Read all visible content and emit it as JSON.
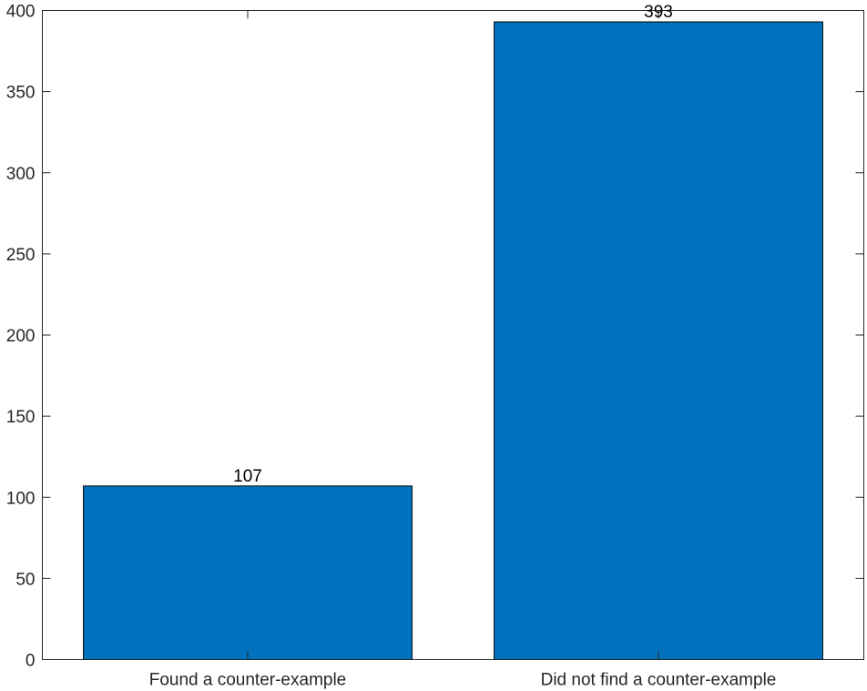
{
  "chart_data": {
    "type": "bar",
    "title": "",
    "xlabel": "",
    "ylabel": "",
    "categories": [
      "Found a counter-example",
      "Did not find a counter-example"
    ],
    "values": [
      107,
      393
    ],
    "data_labels": [
      "107",
      "393"
    ],
    "ylim": [
      0,
      400
    ],
    "yticks": [
      0,
      50,
      100,
      150,
      200,
      250,
      300,
      350,
      400
    ],
    "grid": false,
    "legend": "none",
    "bar_color": "#0072BD",
    "bar_edge_color": "#000000"
  }
}
